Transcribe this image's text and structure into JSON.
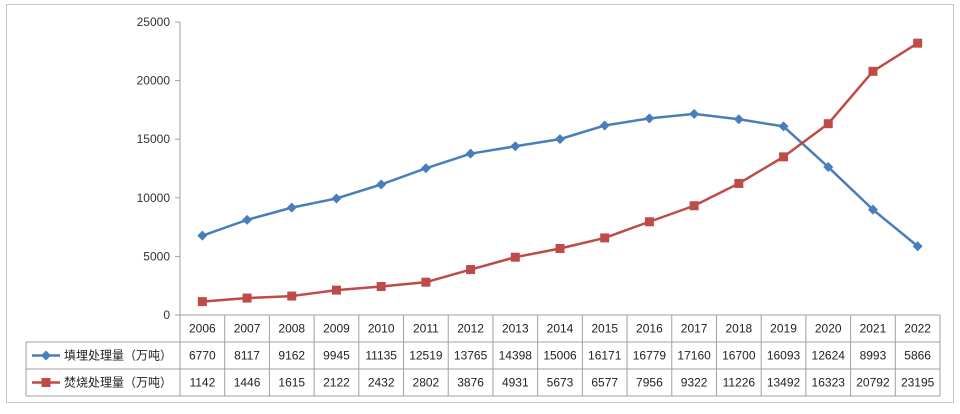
{
  "chart_data": {
    "type": "line",
    "title": "",
    "xlabel": "",
    "ylabel": "",
    "categories": [
      "2006",
      "2007",
      "2008",
      "2009",
      "2010",
      "2011",
      "2012",
      "2013",
      "2014",
      "2015",
      "2016",
      "2017",
      "2018",
      "2019",
      "2020",
      "2021",
      "2022"
    ],
    "ylim": [
      0,
      25000
    ],
    "yticks": [
      0,
      5000,
      10000,
      15000,
      20000,
      25000
    ],
    "grid": false,
    "legend": "data-table",
    "series": [
      {
        "name": "填埋处理量（万吨）",
        "color": "#4a7ebb",
        "marker": "diamond",
        "values": [
          6770,
          8117,
          9162,
          9945,
          11135,
          12519,
          13765,
          14398,
          15006,
          16171,
          16779,
          17160,
          16700,
          16093,
          12624,
          8993,
          5866
        ]
      },
      {
        "name": "焚烧处理量（万吨）",
        "color": "#be4b48",
        "marker": "square",
        "values": [
          1142,
          1446,
          1615,
          2122,
          2432,
          2802,
          3876,
          4931,
          5673,
          6577,
          7956,
          9322,
          11226,
          13492,
          16323,
          20792,
          23195
        ]
      }
    ]
  }
}
